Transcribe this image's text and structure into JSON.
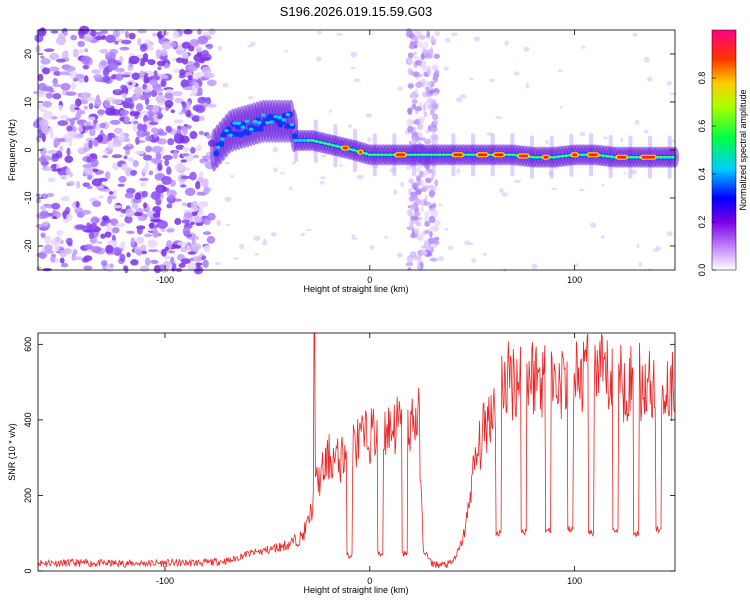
{
  "title": "S196.2026.019.15.59.G03",
  "spectrogram": {
    "type": "heatmap",
    "xlabel": "Height of straight line (km)",
    "ylabel": "Frequency (Hz)",
    "xlim": [
      -162,
      149
    ],
    "ylim": [
      -25,
      25
    ],
    "xticks": [
      -100,
      0,
      100
    ],
    "xtick_labels": [
      "-100",
      "0",
      "100"
    ],
    "yticks": [
      -20,
      -10,
      0,
      10,
      20
    ],
    "ytick_labels": [
      "-20",
      "-10",
      "0",
      "10",
      "20"
    ],
    "noise_region_x": [
      -162,
      -77
    ],
    "noise_band_x": [
      19,
      33
    ],
    "ridge": [
      [
        -76,
        0
      ],
      [
        -68,
        4
      ],
      [
        -60,
        5
      ],
      [
        -52,
        6
      ],
      [
        -44,
        6
      ],
      [
        -38,
        6
      ],
      [
        -36,
        2
      ],
      [
        -28,
        2
      ],
      [
        -18,
        1
      ],
      [
        -8,
        0
      ],
      [
        0,
        -1
      ],
      [
        10,
        -1
      ],
      [
        18,
        -1
      ],
      [
        24,
        -1
      ],
      [
        32,
        -1
      ],
      [
        40,
        -1
      ],
      [
        50,
        -1
      ],
      [
        60,
        -1
      ],
      [
        70,
        -1
      ],
      [
        80,
        -1.5
      ],
      [
        90,
        -1.5
      ],
      [
        100,
        -1
      ],
      [
        110,
        -1
      ],
      [
        120,
        -1.5
      ],
      [
        130,
        -1.5
      ],
      [
        149,
        -1.5
      ]
    ],
    "colorbar": {
      "label": "Normalized spectral amplitude",
      "ticks": [
        0.0,
        0.2,
        0.4,
        0.6,
        0.8
      ],
      "tick_labels": [
        "0.0",
        "0.2",
        "0.4",
        "0.6",
        "0.8"
      ],
      "range": [
        0,
        1
      ]
    }
  },
  "snr": {
    "type": "line",
    "xlabel": "Height of straight line (km)",
    "ylabel": "SNR (10 * v/v)",
    "xlim": [
      -162,
      149
    ],
    "ylim": [
      0,
      630
    ],
    "xticks": [
      -100,
      0,
      100
    ],
    "xtick_labels": [
      "-100",
      "0",
      "100"
    ],
    "yticks": [
      0,
      200,
      400,
      600
    ],
    "ytick_labels": [
      "0",
      "200",
      "400",
      "600"
    ],
    "color": "#ee2222",
    "control_points": [
      [
        -162,
        22
      ],
      [
        -120,
        20
      ],
      [
        -80,
        22
      ],
      [
        -68,
        28
      ],
      [
        -60,
        45
      ],
      [
        -50,
        55
      ],
      [
        -40,
        70
      ],
      [
        -33,
        90
      ],
      [
        -30,
        130
      ],
      [
        -28,
        170
      ],
      [
        -26,
        230
      ],
      [
        -23,
        260
      ],
      [
        -20,
        300
      ],
      [
        -15,
        290
      ],
      [
        -10,
        330
      ],
      [
        -5,
        340
      ],
      [
        0,
        360
      ],
      [
        5,
        370
      ],
      [
        10,
        380
      ],
      [
        15,
        390
      ],
      [
        20,
        395
      ],
      [
        24,
        400
      ],
      [
        26,
        60
      ],
      [
        30,
        20
      ],
      [
        35,
        15
      ],
      [
        40,
        20
      ],
      [
        44,
        60
      ],
      [
        47,
        120
      ],
      [
        50,
        250
      ],
      [
        55,
        360
      ],
      [
        60,
        440
      ],
      [
        65,
        500
      ],
      [
        70,
        510
      ],
      [
        80,
        520
      ],
      [
        90,
        500
      ],
      [
        100,
        510
      ],
      [
        110,
        520
      ],
      [
        120,
        500
      ],
      [
        130,
        500
      ],
      [
        140,
        490
      ],
      [
        149,
        490
      ]
    ],
    "spike": [
      -27,
      630
    ],
    "dips_x": [
      -10,
      5,
      17,
      63,
      75,
      87,
      98,
      108,
      120,
      130,
      141
    ],
    "dip_values": [
      40,
      45,
      45,
      100,
      105,
      110,
      110,
      100,
      110,
      100,
      110
    ]
  }
}
